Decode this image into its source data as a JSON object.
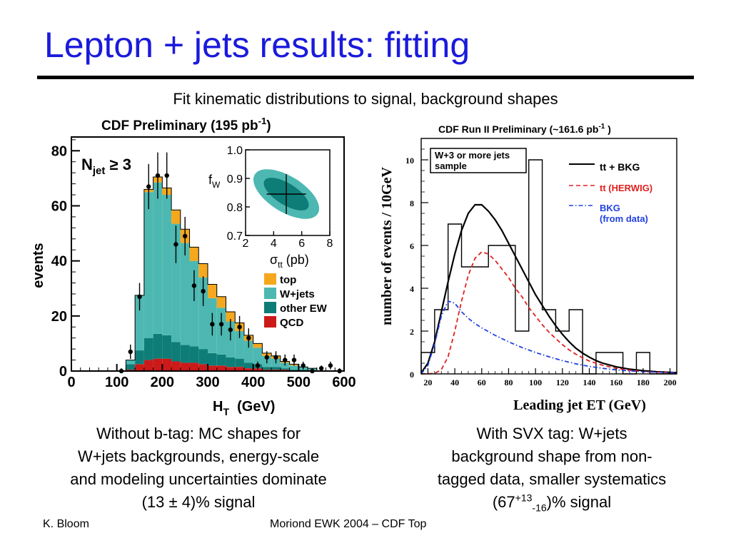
{
  "slide": {
    "title": "Lepton + jets results: fitting",
    "subtitle": "Fit kinematic distributions to signal, background shapes"
  },
  "left_caption": {
    "line1": "Without b-tag: MC shapes for",
    "line2": "W+jets backgrounds, energy-scale",
    "line3": "and modeling uncertainties dominate",
    "line4": "(13 ± 4)% signal"
  },
  "right_caption": {
    "line1": "With SVX tag: W+jets",
    "line2": "background shape from non-",
    "line3": "tagged data, smaller systematics",
    "line4_pre": "(67",
    "line4_sup": "+13",
    "line4_sub": "-16",
    "line4_post": ")% signal"
  },
  "footer": {
    "author": "K. Bloom",
    "event": "Moriond EWK 2004 – CDF Top"
  },
  "chart_data": [
    {
      "type": "bar",
      "subtype": "stacked-histogram",
      "title": "CDF Preliminary (195 pb",
      "title_sup": "-1",
      "title_post": ")",
      "xlabel": "H",
      "xlabel_sub": "T",
      "xlabel_post": "  (GeV)",
      "ylabel": "events",
      "annotation": "N",
      "annotation_sub": "jet",
      "annotation_post": " ≥ 3",
      "xlim": [
        0,
        600
      ],
      "ylim": [
        0,
        85
      ],
      "xticks": [
        0,
        100,
        200,
        300,
        400,
        500,
        600
      ],
      "yticks": [
        0,
        20,
        40,
        60,
        80
      ],
      "bin_edges": [
        80,
        100,
        120,
        140,
        160,
        180,
        200,
        220,
        240,
        260,
        280,
        300,
        320,
        340,
        360,
        380,
        400,
        420,
        440,
        460,
        480,
        500,
        520,
        540,
        560,
        580,
        600
      ],
      "series": [
        {
          "name": "QCD",
          "color": "#cc1a1a",
          "values": [
            0,
            0,
            0.5,
            2.5,
            4,
            4.5,
            4.5,
            3.5,
            3,
            3,
            2.5,
            2,
            2,
            1.5,
            1.5,
            1,
            1,
            0.5,
            0.5,
            0.5,
            0,
            0,
            0,
            0,
            0,
            0
          ]
        },
        {
          "name": "other EW",
          "color": "#0e7d77",
          "values": [
            0,
            0,
            2,
            5,
            8,
            9,
            8.5,
            7,
            6.5,
            6,
            5.5,
            4.5,
            4,
            3.5,
            3,
            2,
            1.5,
            1,
            1,
            0.5,
            0.5,
            0.5,
            0,
            0,
            0,
            0
          ]
        },
        {
          "name": "W+jets",
          "color": "#4db8b1",
          "values": [
            0,
            0,
            1.5,
            20,
            53,
            55,
            51,
            43,
            37,
            31,
            26,
            20,
            17,
            13,
            10,
            8,
            6,
            4,
            3,
            2,
            1.5,
            1,
            1,
            0,
            0,
            0
          ]
        },
        {
          "name": "top",
          "color": "#f5a81e",
          "values": [
            0,
            0,
            0,
            0,
            1,
            2,
            2.5,
            5,
            5,
            5,
            5,
            5,
            4,
            3.5,
            3,
            2,
            1.5,
            1,
            1,
            0.5,
            0.5,
            0,
            0,
            0,
            0,
            0
          ]
        }
      ],
      "data_points": {
        "x": [
          110,
          130,
          150,
          170,
          190,
          210,
          230,
          250,
          270,
          290,
          310,
          330,
          350,
          370,
          390,
          410,
          430,
          450,
          470,
          490,
          510,
          530,
          550,
          570,
          590
        ],
        "y": [
          0,
          7,
          27,
          67,
          71,
          71,
          46,
          49,
          31,
          29,
          17,
          17,
          15,
          16,
          12,
          2,
          5,
          5,
          4,
          4,
          2,
          0,
          1,
          2,
          0
        ],
        "err": [
          1,
          2.6,
          5,
          8.2,
          8.4,
          8.4,
          6.8,
          7,
          5.6,
          5.4,
          4.1,
          4.1,
          3.9,
          4,
          3.5,
          1.4,
          2.2,
          2.2,
          2,
          2,
          1.4,
          1,
          1,
          1.4,
          1
        ]
      },
      "legend_position": "right",
      "inset": {
        "ylabel": "f",
        "ylabel_sub": "W",
        "xlabel": "σ",
        "xlabel_sub": "tt",
        "xlabel_post": " (pb)",
        "xlim": [
          2,
          8
        ],
        "ylim": [
          0.7,
          1.0
        ],
        "xticks": [
          2,
          4,
          6,
          8
        ],
        "yticks": [
          "0.7",
          "0.8",
          "0.9",
          "1.0"
        ],
        "best_fit": [
          4.9,
          0.845
        ],
        "error_x": [
          3.5,
          6.3
        ],
        "error_y": [
          0.775,
          0.915
        ],
        "outer_color": "#4db8b1",
        "inner_color": "#0e7d77"
      }
    },
    {
      "type": "line",
      "subtype": "histogram-with-curves",
      "title": "CDF Run II Preliminary (~161.6 pb",
      "title_sup": "-1",
      "title_post": " )",
      "xlabel": "Leading jet ET (GeV)",
      "ylabel": "number of events / 10GeV",
      "xlim": [
        15,
        205
      ],
      "ylim": [
        0,
        11
      ],
      "xticks": [
        20,
        40,
        60,
        80,
        100,
        120,
        140,
        160,
        180,
        200
      ],
      "yticks": [
        0,
        2,
        4,
        6,
        8,
        10
      ],
      "annotation_line1": "W+3 or more jets",
      "annotation_line2": "sample",
      "histogram": {
        "bin_edges": [
          15,
          25,
          35,
          45,
          55,
          65,
          75,
          85,
          95,
          105,
          115,
          125,
          135,
          145,
          155,
          165,
          175,
          185,
          195,
          205
        ],
        "values": [
          1,
          3,
          7,
          5,
          5,
          6,
          6,
          2,
          10,
          3,
          2,
          3,
          0,
          1,
          1,
          0,
          1,
          0,
          0
        ]
      },
      "curves": [
        {
          "name": "tt + BKG",
          "color": "#000000",
          "style": "solid",
          "x": [
            15,
            20,
            25,
            30,
            35,
            40,
            45,
            50,
            55,
            60,
            65,
            70,
            75,
            80,
            85,
            90,
            95,
            100,
            105,
            110,
            115,
            120,
            125,
            130,
            135,
            140,
            145,
            150,
            160,
            170,
            180,
            190,
            200,
            205
          ],
          "y": [
            0.05,
            0.5,
            1.5,
            2.9,
            4.3,
            5.6,
            6.7,
            7.5,
            7.9,
            7.9,
            7.6,
            7.2,
            6.7,
            6.1,
            5.5,
            4.9,
            4.3,
            3.7,
            3.2,
            2.7,
            2.25,
            1.85,
            1.5,
            1.2,
            0.97,
            0.78,
            0.62,
            0.5,
            0.33,
            0.22,
            0.15,
            0.1,
            0.07,
            0.06
          ]
        },
        {
          "name": "tt (HERWIG)",
          "color": "#e02020",
          "style": "dashed",
          "x": [
            15,
            25,
            30,
            35,
            40,
            45,
            50,
            55,
            60,
            65,
            70,
            75,
            80,
            85,
            90,
            95,
            100,
            105,
            110,
            115,
            120,
            125,
            130,
            135,
            140,
            150,
            160,
            170,
            180,
            190,
            200,
            205
          ],
          "y": [
            0,
            0.02,
            0.2,
            0.8,
            2.0,
            3.4,
            4.6,
            5.4,
            5.7,
            5.6,
            5.3,
            4.9,
            4.5,
            4.0,
            3.6,
            3.1,
            2.7,
            2.3,
            1.95,
            1.65,
            1.37,
            1.12,
            0.92,
            0.75,
            0.6,
            0.4,
            0.26,
            0.17,
            0.11,
            0.08,
            0.06,
            0.05
          ]
        },
        {
          "name": "BKG (from data)",
          "color": "#2040e0",
          "style": "dashdot",
          "x": [
            15,
            20,
            25,
            30,
            35,
            40,
            45,
            50,
            55,
            60,
            70,
            80,
            90,
            100,
            110,
            120,
            130,
            140,
            150,
            160,
            170,
            180,
            190,
            200,
            205
          ],
          "y": [
            0,
            0.4,
            1.4,
            2.7,
            3.4,
            3.3,
            2.9,
            2.6,
            2.35,
            2.15,
            1.8,
            1.5,
            1.23,
            1.0,
            0.8,
            0.62,
            0.47,
            0.35,
            0.26,
            0.19,
            0.14,
            0.1,
            0.08,
            0.06,
            0.05
          ]
        }
      ],
      "legend_position": "top-right"
    }
  ]
}
